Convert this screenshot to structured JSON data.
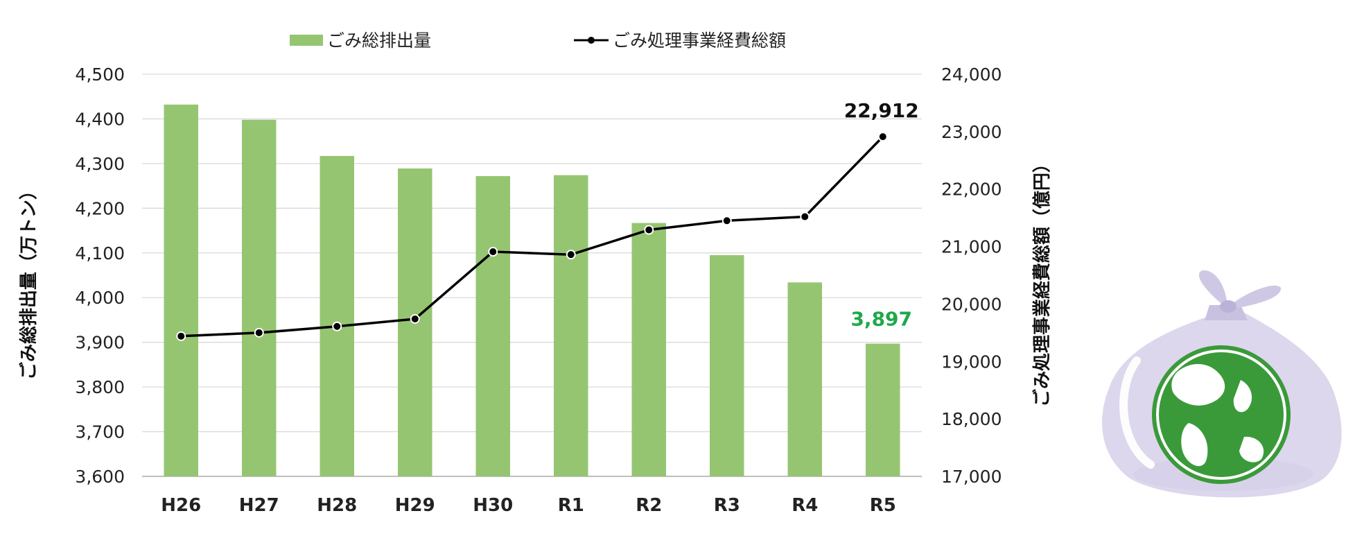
{
  "chart_data": {
    "type": "bar+line",
    "categories": [
      "H26",
      "H27",
      "H28",
      "H29",
      "H30",
      "R1",
      "R2",
      "R3",
      "R4",
      "R5"
    ],
    "series": [
      {
        "name": "ごみ総排出量",
        "kind": "bar",
        "axis": "left",
        "color": "#96c572",
        "values": [
          4432,
          4398,
          4317,
          4289,
          4272,
          4274,
          4167,
          4095,
          4034,
          3897
        ]
      },
      {
        "name": "ごみ処理事業経費総額",
        "kind": "line",
        "axis": "right",
        "color": "#000000",
        "values": [
          19440,
          19500,
          19610,
          19740,
          20910,
          20860,
          21290,
          21450,
          21520,
          22912
        ]
      }
    ],
    "ylabel_left": "ごみ総排出量（万トン）",
    "ylabel_right": "ごみ処理事業経費総額（億円）",
    "ylim_left": [
      3600,
      4500
    ],
    "yticks_left": [
      3600,
      3700,
      3800,
      3900,
      4000,
      4100,
      4200,
      4300,
      4400,
      4500
    ],
    "ytick_labels_left": [
      "3,600",
      "3,700",
      "3,800",
      "3,900",
      "4,000",
      "4,100",
      "4,200",
      "4,300",
      "4,400",
      "4,500"
    ],
    "ylim_right": [
      17000,
      24000
    ],
    "yticks_right": [
      17000,
      18000,
      19000,
      20000,
      21000,
      22000,
      23000,
      24000
    ],
    "ytick_labels_right": [
      "17,000",
      "18,000",
      "19,000",
      "20,000",
      "21,000",
      "22,000",
      "23,000",
      "24,000"
    ],
    "annotations": [
      {
        "text": "22,912",
        "series": "ごみ処理事業経費総額",
        "category": "R5",
        "color": "#111111"
      },
      {
        "text": "3,897",
        "series": "ごみ総排出量",
        "category": "R5",
        "color": "#1fa84a"
      }
    ],
    "legend_position": "top",
    "grid": true
  },
  "illustration": {
    "icon": "garbage-bag-with-globe-icon",
    "bag_color": "#d8d3ea",
    "globe_color": "#3a9a3a"
  }
}
